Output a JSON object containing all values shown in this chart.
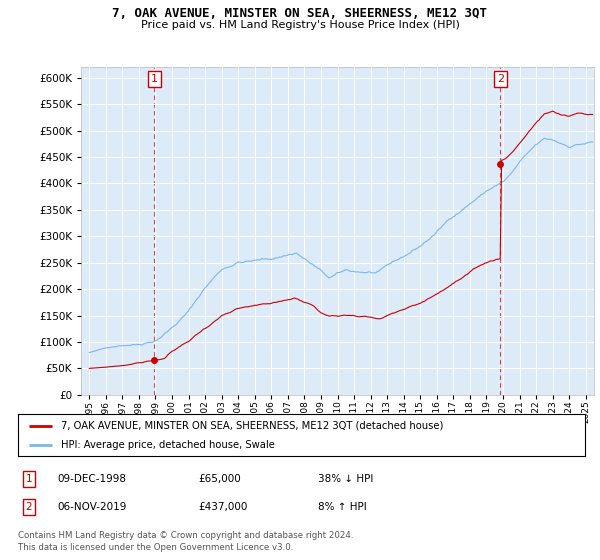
{
  "title": "7, OAK AVENUE, MINSTER ON SEA, SHEERNESS, ME12 3QT",
  "subtitle": "Price paid vs. HM Land Registry's House Price Index (HPI)",
  "sale1_date": "09-DEC-1998",
  "sale1_price": 65000,
  "sale1_pct": "38% ↓ HPI",
  "sale2_date": "06-NOV-2019",
  "sale2_price": 437000,
  "sale2_pct": "8% ↑ HPI",
  "legend_line1": "7, OAK AVENUE, MINSTER ON SEA, SHEERNESS, ME12 3QT (detached house)",
  "legend_line2": "HPI: Average price, detached house, Swale",
  "footer": "Contains HM Land Registry data © Crown copyright and database right 2024.\nThis data is licensed under the Open Government Licence v3.0.",
  "hpi_color": "#7ab8e8",
  "sale_color": "#cc0000",
  "marker1_x": 1998.94,
  "marker2_x": 2019.84,
  "marker1_y": 65000,
  "marker2_y": 437000,
  "ylim": [
    0,
    620000
  ],
  "xlim_start": 1994.5,
  "xlim_end": 2025.5,
  "yticks": [
    0,
    50000,
    100000,
    150000,
    200000,
    250000,
    300000,
    350000,
    400000,
    450000,
    500000,
    550000,
    600000
  ],
  "xticks": [
    1995,
    1996,
    1997,
    1998,
    1999,
    2000,
    2001,
    2002,
    2003,
    2004,
    2005,
    2006,
    2007,
    2008,
    2009,
    2010,
    2011,
    2012,
    2013,
    2014,
    2015,
    2016,
    2017,
    2018,
    2019,
    2020,
    2021,
    2022,
    2023,
    2024,
    2025
  ],
  "plot_bg": "#ddeaf7"
}
